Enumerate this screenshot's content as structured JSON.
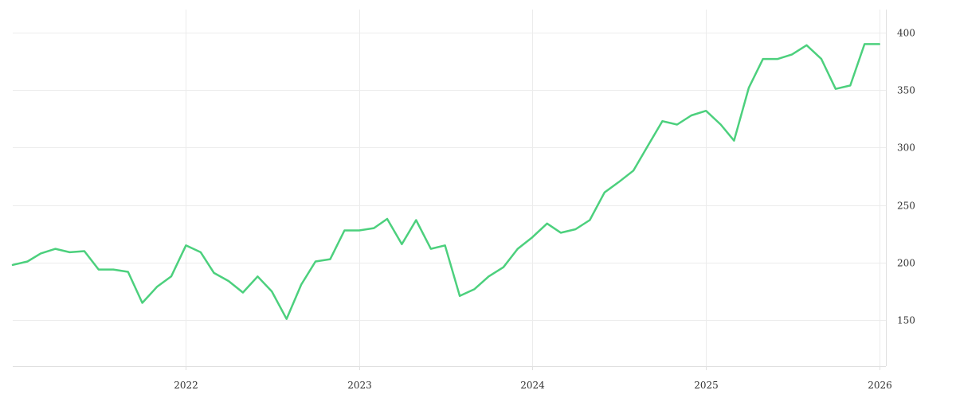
{
  "chart_data": {
    "type": "line",
    "title": "",
    "xlabel": "",
    "ylabel": "",
    "grid": true,
    "y_axis_side": "right",
    "ylim": [
      110,
      420
    ],
    "y_ticks": [
      150,
      200,
      250,
      300,
      350,
      400
    ],
    "x_ticks": [
      {
        "date": "2022-01-01",
        "label": "2022"
      },
      {
        "date": "2023-01-01",
        "label": "2023"
      },
      {
        "date": "2024-01-01",
        "label": "2024"
      },
      {
        "date": "2025-01-01",
        "label": "2025"
      },
      {
        "date": "2026-01-01",
        "label": "2026"
      }
    ],
    "xlim": [
      "2021-01-01",
      "2026-01-15"
    ],
    "colors": {
      "line": "#4cd07d",
      "grid": "#ececec",
      "text": "#333333"
    },
    "series": [
      {
        "name": "",
        "x": [
          "2021-01-01",
          "2021-02-01",
          "2021-03-01",
          "2021-04-01",
          "2021-05-01",
          "2021-06-01",
          "2021-07-01",
          "2021-08-01",
          "2021-09-01",
          "2021-10-01",
          "2021-11-01",
          "2021-12-01",
          "2022-01-01",
          "2022-02-01",
          "2022-03-01",
          "2022-04-01",
          "2022-05-01",
          "2022-06-01",
          "2022-07-01",
          "2022-08-01",
          "2022-09-01",
          "2022-10-01",
          "2022-11-01",
          "2022-12-01",
          "2023-01-01",
          "2023-02-01",
          "2023-03-01",
          "2023-04-01",
          "2023-05-01",
          "2023-06-01",
          "2023-07-01",
          "2023-08-01",
          "2023-09-01",
          "2023-10-01",
          "2023-11-01",
          "2023-12-01",
          "2024-01-01",
          "2024-02-01",
          "2024-03-01",
          "2024-04-01",
          "2024-05-01",
          "2024-06-01",
          "2024-07-01",
          "2024-08-01",
          "2024-09-01",
          "2024-10-01",
          "2024-11-01",
          "2024-12-01",
          "2025-01-01",
          "2025-02-01",
          "2025-03-01",
          "2025-04-01",
          "2025-05-01",
          "2025-06-01",
          "2025-07-01",
          "2025-08-01",
          "2025-09-01",
          "2025-10-01",
          "2025-11-01",
          "2025-12-01",
          "2026-01-01"
        ],
        "values": [
          198,
          201,
          208,
          212,
          209,
          210,
          194,
          194,
          192,
          165,
          179,
          188,
          215,
          209,
          191,
          184,
          174,
          188,
          175,
          151,
          181,
          201,
          203,
          228,
          228,
          230,
          238,
          216,
          237,
          212,
          215,
          171,
          177,
          188,
          196,
          212,
          222,
          234,
          226,
          229,
          237,
          261,
          270,
          280,
          302,
          323,
          320,
          328,
          332,
          320,
          306,
          352,
          377,
          377,
          381,
          389,
          377,
          351,
          354,
          390,
          390
        ]
      }
    ]
  }
}
